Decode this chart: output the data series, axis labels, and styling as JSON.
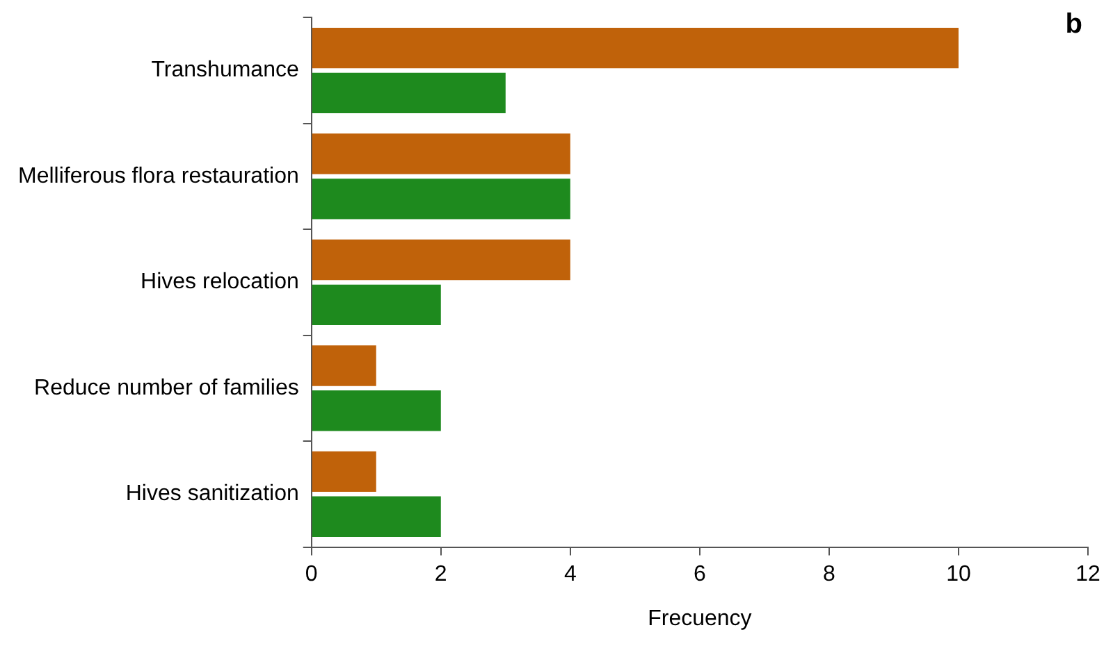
{
  "chart_data": {
    "type": "bar",
    "orientation": "horizontal",
    "xlabel": "Frecuency",
    "annotations": [
      "b"
    ],
    "categories": [
      "Transhumance",
      "Melliferous flora restauration",
      "Hives relocation",
      "Reduce number of families",
      "Hives sanitization"
    ],
    "series": [
      {
        "color": "#c0620a",
        "values": [
          10,
          4,
          4,
          1,
          1
        ]
      },
      {
        "color": "#1e8a1e",
        "values": [
          3,
          4,
          2,
          2,
          2
        ]
      }
    ],
    "xlim": [
      0,
      12
    ],
    "xticks": [
      0,
      2,
      4,
      6,
      8,
      10,
      12
    ],
    "grid": false,
    "legend": false
  }
}
